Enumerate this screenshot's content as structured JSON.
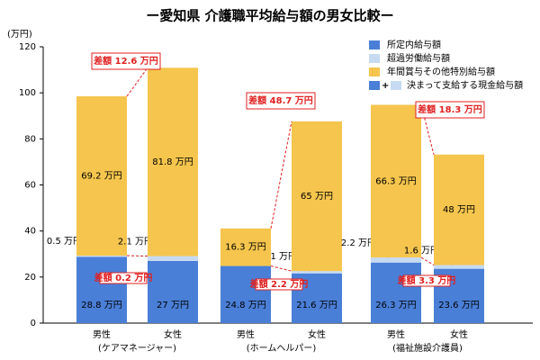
{
  "chart_data": {
    "type": "stacked_bar",
    "title": "ー愛知県 介護職平均給与額の男女比較ー",
    "y_unit": "(万円)",
    "categories": [
      "男性",
      "女性",
      "男性",
      "女性",
      "男性",
      "女性"
    ],
    "groups": [
      "(ケアマネージャー)",
      "(ホームヘルパー)",
      "(福祉施設介護員)"
    ],
    "series": [
      {
        "name": "所定内給与額",
        "color": "#4a7fd7",
        "values": [
          28.8,
          27,
          24.8,
          21.6,
          26.3,
          23.6
        ],
        "value_labels": [
          "28.8 万円",
          "27 万円",
          "24.8 万円",
          "21.6 万円",
          "26.3 万円",
          "23.6 万円"
        ]
      },
      {
        "name": "超過労働給与額",
        "color": "#c6daf2",
        "values": [
          0.5,
          2.1,
          0,
          1,
          2.2,
          1.6
        ],
        "value_labels": [
          "0.5 万円",
          "2.1 万円",
          null,
          "1 万円",
          "2.2 万円",
          "1.6 万円"
        ]
      },
      {
        "name": "年間賞与その他特別給与額",
        "color": "#f5c54d",
        "values": [
          69.2,
          81.8,
          16.3,
          65,
          66.3,
          48
        ],
        "value_labels": [
          "69.2 万円",
          "81.8 万円",
          "16.3 万円",
          "65 万円",
          "66.3 万円",
          "48 万円"
        ]
      }
    ],
    "combined_legend": {
      "plus": "+",
      "name": "決まって支給する現金給与額"
    },
    "total_diffs": [
      "差額 12.6 万円",
      "差額 48.7 万円",
      "差額 18.3 万円"
    ],
    "base_diffs": [
      "差額 0.2 万円",
      "差額 2.2 万円",
      "差額 3.3 万円"
    ],
    "ylim": [
      0,
      120
    ],
    "yticks": [
      0,
      20,
      40,
      60,
      80,
      100,
      120
    ]
  }
}
